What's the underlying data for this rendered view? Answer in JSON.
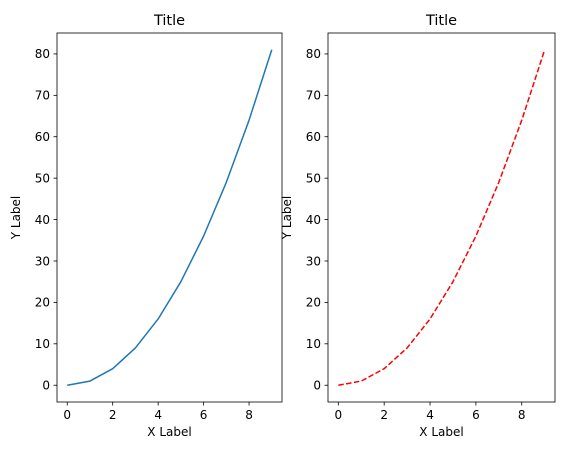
{
  "chart_data": [
    {
      "type": "line",
      "title": "Title",
      "xlabel": "X Label",
      "ylabel": "Y Label",
      "xlim": [
        -0.45,
        9.45
      ],
      "ylim": [
        -4.05,
        85.05
      ],
      "xticks": [
        0,
        2,
        4,
        6,
        8
      ],
      "yticks": [
        0,
        10,
        20,
        30,
        40,
        50,
        60,
        70,
        80
      ],
      "grid": false,
      "series": [
        {
          "x": [
            0,
            1,
            2,
            3,
            4,
            5,
            6,
            7,
            8,
            9
          ],
          "values": [
            0,
            1,
            4,
            9,
            16,
            25,
            36,
            49,
            64,
            81
          ],
          "color": "#1f77b4",
          "linestyle": "solid"
        }
      ]
    },
    {
      "type": "line",
      "title": "Title",
      "xlabel": "X Label",
      "ylabel": "Y Label",
      "xlim": [
        -0.45,
        9.45
      ],
      "ylim": [
        -4.05,
        85.05
      ],
      "xticks": [
        0,
        2,
        4,
        6,
        8
      ],
      "yticks": [
        0,
        10,
        20,
        30,
        40,
        50,
        60,
        70,
        80
      ],
      "grid": false,
      "series": [
        {
          "x": [
            0,
            1,
            2,
            3,
            4,
            5,
            6,
            7,
            8,
            9
          ],
          "values": [
            0,
            1,
            4,
            9,
            16,
            25,
            36,
            49,
            64,
            81
          ],
          "color": "#ff0000",
          "linestyle": "dashed"
        }
      ]
    }
  ]
}
